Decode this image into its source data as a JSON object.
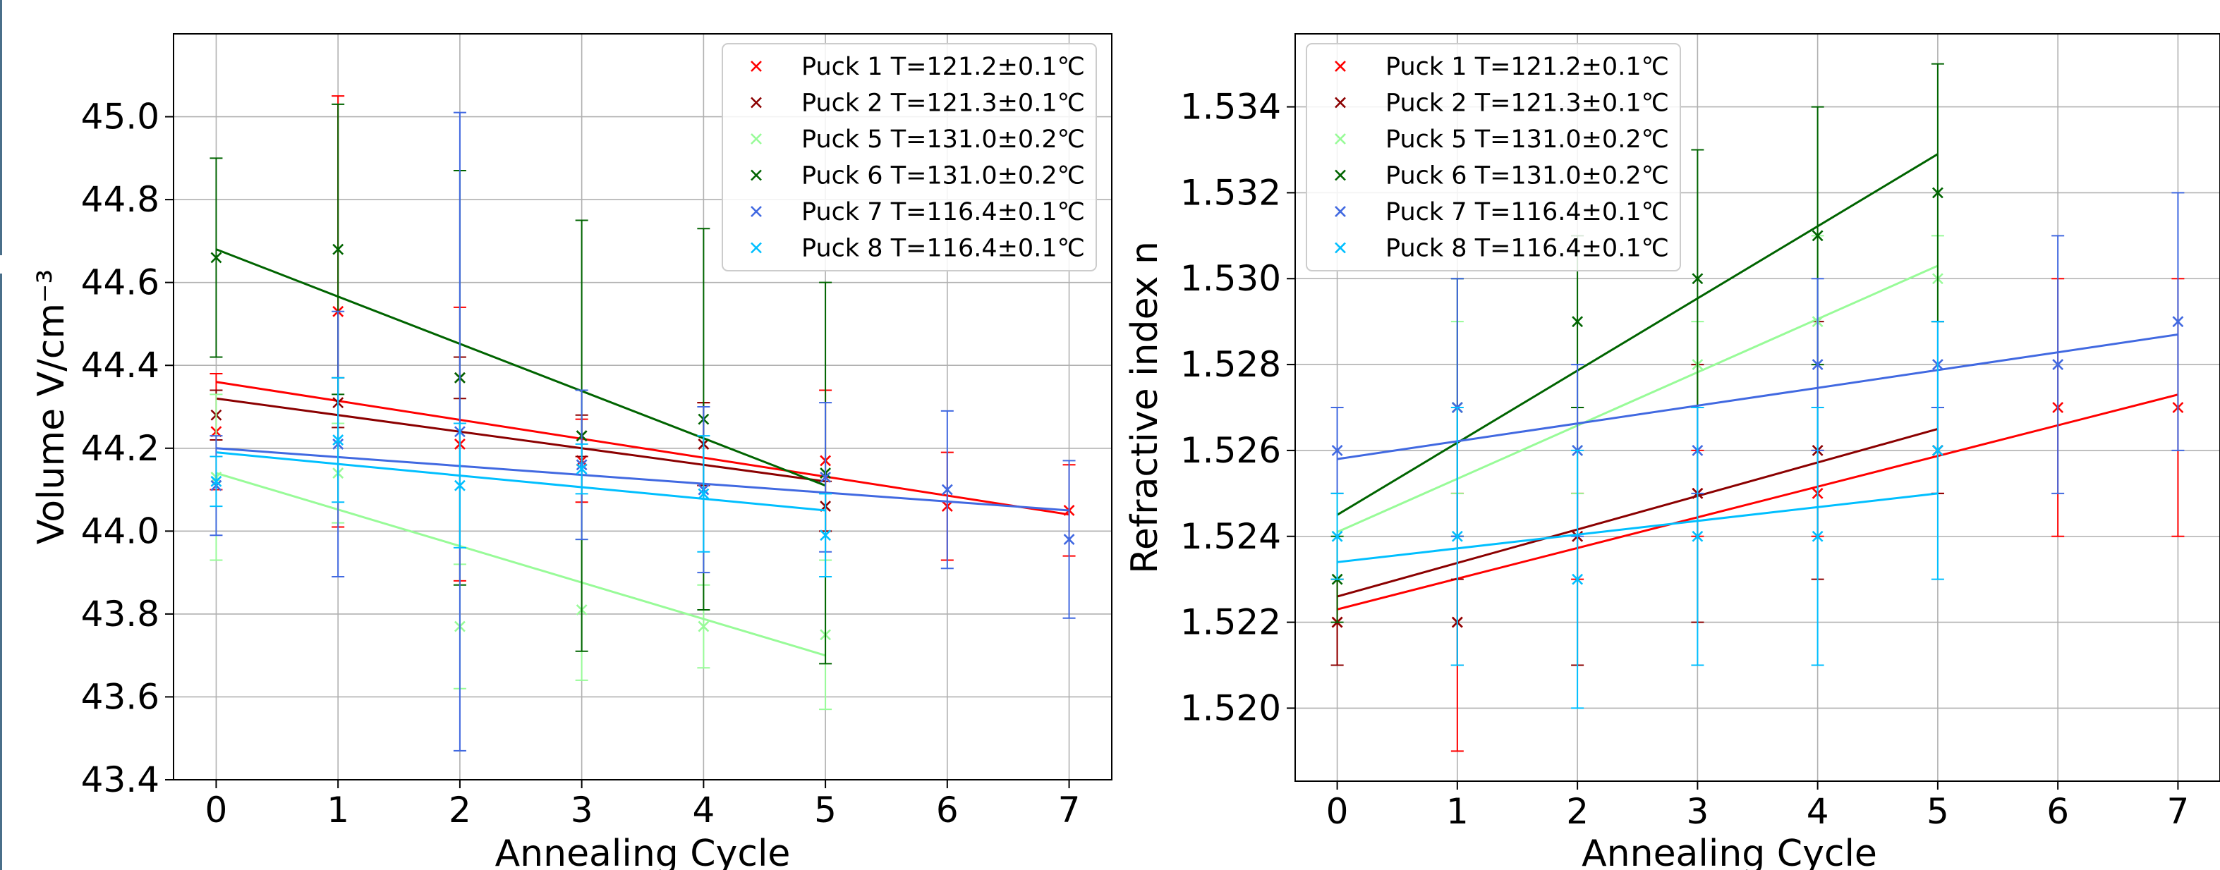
{
  "chart_data": [
    {
      "type": "scatter",
      "title": "",
      "xlabel": "Annealing Cycle",
      "ylabel": "Volume V/cm⁻³",
      "xlim": [
        -0.35,
        7.35
      ],
      "ylim": [
        43.4,
        45.2
      ],
      "xticks": [
        0,
        1,
        2,
        3,
        4,
        5,
        6,
        7
      ],
      "yticks": [
        43.4,
        43.6,
        43.8,
        44.0,
        44.2,
        44.4,
        44.6,
        44.8,
        45.0
      ],
      "ytick_labels": [
        "43.4",
        "43.6",
        "43.8",
        "44.0",
        "44.2",
        "44.4",
        "44.6",
        "44.8",
        "45.0"
      ],
      "grid": true,
      "legend_position": "top-right",
      "marker": "x",
      "series": [
        {
          "name": "Puck 1 T=121.2±0.1℃",
          "color": "#ff0000",
          "x": [
            0,
            1,
            2,
            3,
            4,
            5,
            6,
            7
          ],
          "y": [
            44.24,
            44.53,
            44.21,
            44.17,
            44.21,
            44.17,
            44.06,
            44.05
          ],
          "yerr": [
            0.14,
            0.52,
            0.33,
            0.1,
            0.1,
            0.17,
            0.13,
            0.11
          ],
          "fit": {
            "x": [
              0,
              7
            ],
            "y": [
              44.36,
              44.04
            ]
          }
        },
        {
          "name": "Puck 2 T=121.3±0.1℃",
          "color": "#8b0000",
          "x": [
            0,
            1,
            2,
            3,
            4,
            5
          ],
          "y": [
            44.28,
            44.31,
            44.37,
            44.23,
            44.21,
            44.06
          ],
          "yerr": [
            0.06,
            0.06,
            0.05,
            0.05,
            0.1,
            0.06
          ],
          "fit": {
            "x": [
              0,
              5
            ],
            "y": [
              44.32,
              44.12
            ]
          }
        },
        {
          "name": "Puck 5 T=131.0±0.2℃",
          "color": "#98fb98",
          "x": [
            0,
            1,
            2,
            3,
            4,
            5
          ],
          "y": [
            44.13,
            44.14,
            43.77,
            43.81,
            43.77,
            43.75
          ],
          "yerr": [
            0.2,
            0.12,
            0.15,
            0.17,
            0.1,
            0.18
          ],
          "fit": {
            "x": [
              0,
              5
            ],
            "y": [
              44.14,
              43.7
            ]
          }
        },
        {
          "name": "Puck 6 T=131.0±0.2℃",
          "color": "#006400",
          "x": [
            0,
            1,
            2,
            3,
            4,
            5
          ],
          "y": [
            44.66,
            44.68,
            44.37,
            44.23,
            44.27,
            44.14
          ],
          "yerr": [
            0.24,
            0.35,
            0.5,
            0.52,
            0.46,
            0.46
          ],
          "fit": {
            "x": [
              0,
              5
            ],
            "y": [
              44.68,
              44.11
            ]
          }
        },
        {
          "name": "Puck 7 T=116.4±0.1℃",
          "color": "#4169e1",
          "x": [
            0,
            1,
            2,
            3,
            4,
            5,
            6,
            7
          ],
          "y": [
            44.11,
            44.21,
            44.24,
            44.16,
            44.1,
            44.13,
            44.1,
            43.98
          ],
          "yerr": [
            0.12,
            0.32,
            0.77,
            0.18,
            0.2,
            0.18,
            0.19,
            0.19
          ],
          "fit": {
            "x": [
              0,
              7
            ],
            "y": [
              44.2,
              44.05
            ]
          }
        },
        {
          "name": "Puck 8 T=116.4±0.1℃",
          "color": "#00bfff",
          "x": [
            0,
            1,
            2,
            3,
            4,
            5
          ],
          "y": [
            44.12,
            44.22,
            44.11,
            44.15,
            44.09,
            43.99
          ],
          "yerr": [
            0.06,
            0.15,
            0.15,
            0.06,
            0.14,
            0.1
          ],
          "fit": {
            "x": [
              0,
              5
            ],
            "y": [
              44.19,
              44.05
            ]
          }
        }
      ]
    },
    {
      "type": "scatter",
      "title": "",
      "xlabel": "Annealing Cycle",
      "ylabel": "Refractive index n",
      "xlim": [
        -0.35,
        7.35
      ],
      "ylim": [
        1.5183,
        1.5357
      ],
      "xticks": [
        0,
        1,
        2,
        3,
        4,
        5,
        6,
        7
      ],
      "yticks": [
        1.52,
        1.522,
        1.524,
        1.526,
        1.528,
        1.53,
        1.532,
        1.534
      ],
      "ytick_labels": [
        "1.520",
        "1.522",
        "1.524",
        "1.526",
        "1.528",
        "1.530",
        "1.532",
        "1.534"
      ],
      "grid": true,
      "legend_position": "top-left",
      "marker": "x",
      "series": [
        {
          "name": "Puck 1 T=121.2±0.1℃",
          "color": "#ff0000",
          "x": [
            0,
            1,
            2,
            3,
            4,
            5,
            6,
            7
          ],
          "y": [
            1.522,
            1.522,
            1.524,
            1.525,
            1.525,
            1.526,
            1.527,
            1.527
          ],
          "yerr": [
            0.001,
            0.003,
            0.001,
            0.001,
            0.001,
            0.001,
            0.003,
            0.003
          ],
          "fit": {
            "x": [
              0,
              7
            ],
            "y": [
              1.5223,
              1.5273
            ]
          }
        },
        {
          "name": "Puck 2 T=121.3±0.1℃",
          "color": "#8b0000",
          "x": [
            0,
            1,
            2,
            3,
            4,
            5
          ],
          "y": [
            1.522,
            1.522,
            1.524,
            1.525,
            1.526,
            1.526
          ],
          "yerr": [
            0.001,
            0.001,
            0.003,
            0.003,
            0.003,
            0.001
          ],
          "fit": {
            "x": [
              0,
              5
            ],
            "y": [
              1.5226,
              1.5265
            ]
          }
        },
        {
          "name": "Puck 5 T=131.0±0.2℃",
          "color": "#98fb98",
          "x": [
            0,
            1,
            2,
            3,
            4,
            5
          ],
          "y": [
            1.524,
            1.527,
            1.526,
            1.528,
            1.529,
            1.53
          ],
          "yerr": [
            0.001,
            0.002,
            0.001,
            0.001,
            0.002,
            0.001
          ],
          "fit": {
            "x": [
              0,
              5
            ],
            "y": [
              1.5241,
              1.5303
            ]
          }
        },
        {
          "name": "Puck 6 T=131.0±0.2℃",
          "color": "#006400",
          "x": [
            0,
            1,
            2,
            3,
            4,
            5
          ],
          "y": [
            1.523,
            1.527,
            1.529,
            1.53,
            1.531,
            1.532
          ],
          "yerr": [
            0.001,
            0.003,
            0.002,
            0.003,
            0.003,
            0.003
          ],
          "fit": {
            "x": [
              0,
              5
            ],
            "y": [
              1.5245,
              1.5329
            ]
          }
        },
        {
          "name": "Puck 7 T=116.4±0.1℃",
          "color": "#4169e1",
          "x": [
            0,
            1,
            2,
            3,
            4,
            5,
            6,
            7
          ],
          "y": [
            1.526,
            1.527,
            1.526,
            1.526,
            1.528,
            1.528,
            1.528,
            1.529
          ],
          "yerr": [
            0.001,
            0.003,
            0.002,
            0.001,
            0.002,
            0.001,
            0.003,
            0.003
          ],
          "fit": {
            "x": [
              0,
              7
            ],
            "y": [
              1.5258,
              1.5287
            ]
          }
        },
        {
          "name": "Puck 8 T=116.4±0.1℃",
          "color": "#00bfff",
          "x": [
            0,
            1,
            2,
            3,
            4,
            5
          ],
          "y": [
            1.524,
            1.524,
            1.523,
            1.524,
            1.524,
            1.526
          ],
          "yerr": [
            0.001,
            0.003,
            0.003,
            0.003,
            0.003,
            0.003
          ],
          "fit": {
            "x": [
              0,
              5
            ],
            "y": [
              1.5234,
              1.525
            ]
          }
        }
      ]
    }
  ]
}
